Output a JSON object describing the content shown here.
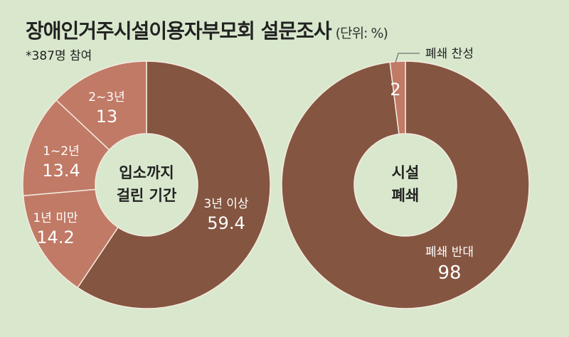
{
  "title": "장애인거주시설이용자부모회 설문조사",
  "unit": "(단위: %)",
  "note": "*387명 참여",
  "colors": {
    "background": "#d9e8cd",
    "dark": "#845540",
    "light": "#c07a66",
    "text_light": "#ffffff",
    "text_dark": "#222222"
  },
  "chart_data": [
    {
      "type": "pie",
      "center_label": [
        "입소까지",
        "걸린 기간"
      ],
      "slices": [
        {
          "label": "3년 이상",
          "value": 59.4,
          "value_label": "59.4",
          "color": "#845540"
        },
        {
          "label": "1년 미만",
          "value": 14.2,
          "value_label": "14.2",
          "color": "#c07a66"
        },
        {
          "label": "1~2년",
          "value": 13.4,
          "value_label": "13.4",
          "color": "#c07a66"
        },
        {
          "label": "2~3년",
          "value": 13,
          "value_label": "13",
          "color": "#c07a66"
        }
      ]
    },
    {
      "type": "pie",
      "center_label": [
        "시설",
        "폐쇄"
      ],
      "slices": [
        {
          "label": "폐쇄 반대",
          "value": 98,
          "value_label": "98",
          "color": "#845540"
        },
        {
          "label": "폐쇄 찬성",
          "value": 2,
          "value_label": "2",
          "color": "#c07a66"
        }
      ]
    }
  ]
}
